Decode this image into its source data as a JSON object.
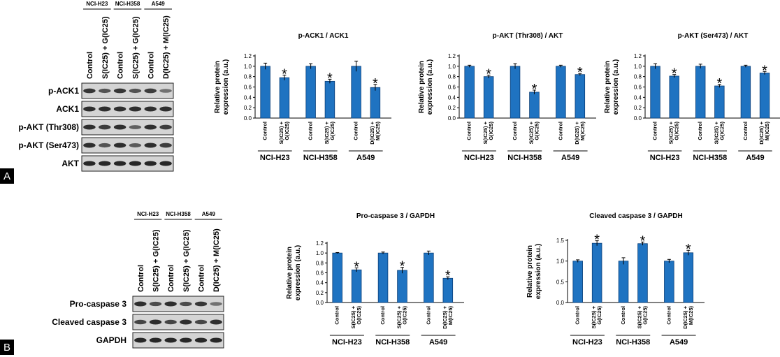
{
  "panels": [
    {
      "letter": "A",
      "blot": {
        "groups": [
          "NCI-H23",
          "NCI-H358",
          "A549"
        ],
        "lanes": [
          "Control",
          "S(IC25) + G(IC25)",
          "Control",
          "S(IC25) + G(IC25)",
          "Control",
          "D(IC25) + M(IC25)"
        ],
        "rows": [
          {
            "label": "p-ACK1",
            "intensity": [
              0.75,
              0.55,
              0.75,
              0.55,
              0.7,
              0.35
            ]
          },
          {
            "label": "ACK1",
            "intensity": [
              0.8,
              0.8,
              0.8,
              0.8,
              0.8,
              0.8
            ]
          },
          {
            "label": "p-AKT (Thr308)",
            "intensity": [
              0.8,
              0.7,
              0.8,
              0.45,
              0.8,
              0.7
            ]
          },
          {
            "label": "p-AKT (Ser473)",
            "intensity": [
              0.8,
              0.55,
              0.8,
              0.5,
              0.8,
              0.7
            ]
          },
          {
            "label": "AKT",
            "intensity": [
              0.85,
              0.85,
              0.85,
              0.85,
              0.85,
              0.85
            ]
          }
        ]
      }
    },
    {
      "letter": "B",
      "blot": {
        "groups": [
          "NCI-H23",
          "NCI-H358",
          "A549"
        ],
        "lanes": [
          "Control",
          "S(IC25) + G(IC25)",
          "Control",
          "S(IC25) + G(IC25)",
          "Control",
          "D(IC25) + M(IC25)"
        ],
        "rows": [
          {
            "label": "Pro-caspase 3",
            "intensity": [
              0.8,
              0.6,
              0.8,
              0.6,
              0.75,
              0.35
            ]
          },
          {
            "label": "Cleaved caspase 3",
            "intensity": [
              0.65,
              0.8,
              0.65,
              0.8,
              0.65,
              0.8
            ]
          },
          {
            "label": "GAPDH",
            "intensity": [
              0.85,
              0.85,
              0.85,
              0.85,
              0.85,
              0.85
            ]
          }
        ]
      }
    }
  ],
  "chart_data": [
    {
      "type": "bar",
      "title": "p-ACK1 / ACK1",
      "ylabel": "Relative protein expression (a.u.)",
      "ylim": [
        0,
        1.2
      ],
      "yticks": [
        0,
        0.2,
        0.4,
        0.6,
        0.8,
        1.0,
        1.2
      ],
      "groups": [
        {
          "name": "NCI-H23",
          "categories": [
            "Control",
            "S(IC25) + G(IC25)"
          ],
          "values": [
            1.0,
            0.78
          ],
          "errors": [
            0.06,
            0.05
          ],
          "significant": [
            false,
            true
          ]
        },
        {
          "name": "NCI-H358",
          "categories": [
            "Control",
            "S(IC25) + G(IC25)"
          ],
          "values": [
            1.0,
            0.71
          ],
          "errors": [
            0.05,
            0.04
          ],
          "significant": [
            false,
            true
          ]
        },
        {
          "name": "A549",
          "categories": [
            "Control",
            "D(IC25) + M(IC25)"
          ],
          "values": [
            1.0,
            0.59
          ],
          "errors": [
            0.1,
            0.06
          ],
          "significant": [
            false,
            true
          ]
        }
      ]
    },
    {
      "type": "bar",
      "title": "p-AKT (Thr308) / AKT",
      "ylabel": "Relative protein expression (a.u.)",
      "ylim": [
        0,
        1.2
      ],
      "yticks": [
        0,
        0.2,
        0.4,
        0.6,
        0.8,
        1.0,
        1.2
      ],
      "groups": [
        {
          "name": "NCI-H23",
          "categories": [
            "Control",
            "S(IC25) + G(IC25)"
          ],
          "values": [
            1.0,
            0.8
          ],
          "errors": [
            0.02,
            0.03
          ],
          "significant": [
            false,
            true
          ]
        },
        {
          "name": "NCI-H358",
          "categories": [
            "Control",
            "S(IC25) + G(IC25)"
          ],
          "values": [
            1.0,
            0.5
          ],
          "errors": [
            0.05,
            0.04
          ],
          "significant": [
            false,
            true
          ]
        },
        {
          "name": "A549",
          "categories": [
            "Control",
            "D(IC25) + M(IC25)"
          ],
          "values": [
            1.0,
            0.84
          ],
          "errors": [
            0.02,
            0.02
          ],
          "significant": [
            false,
            true
          ]
        }
      ]
    },
    {
      "type": "bar",
      "title": "p-AKT (Ser473) / AKT",
      "ylabel": "Relative protein expression (a.u.)",
      "ylim": [
        0,
        1.2
      ],
      "yticks": [
        0,
        0.2,
        0.4,
        0.6,
        0.8,
        1.0,
        1.2
      ],
      "groups": [
        {
          "name": "NCI-H23",
          "categories": [
            "Control",
            "S(IC25) + G(IC25)"
          ],
          "values": [
            1.0,
            0.81
          ],
          "errors": [
            0.05,
            0.03
          ],
          "significant": [
            false,
            true
          ]
        },
        {
          "name": "NCI-H358",
          "categories": [
            "Control",
            "S(IC25) + G(IC25)"
          ],
          "values": [
            1.0,
            0.62
          ],
          "errors": [
            0.04,
            0.03
          ],
          "significant": [
            false,
            true
          ]
        },
        {
          "name": "A549",
          "categories": [
            "Control",
            "D(IC25) + M(IC25)"
          ],
          "values": [
            1.0,
            0.87
          ],
          "errors": [
            0.02,
            0.03
          ],
          "significant": [
            false,
            true
          ]
        }
      ]
    },
    {
      "type": "bar",
      "title": "Pro-caspase 3 / GAPDH",
      "ylabel": "Relative protein expression (a.u.)",
      "ylim": [
        0,
        1.2
      ],
      "yticks": [
        0,
        0.2,
        0.4,
        0.6,
        0.8,
        1.0,
        1.2
      ],
      "groups": [
        {
          "name": "NCI-H23",
          "categories": [
            "Control",
            "S(IC25) + G(IC25)"
          ],
          "values": [
            1.0,
            0.66
          ],
          "errors": [
            0.01,
            0.04
          ],
          "significant": [
            false,
            true
          ]
        },
        {
          "name": "NCI-H358",
          "categories": [
            "Control",
            "S(IC25) + G(IC25)"
          ],
          "values": [
            1.0,
            0.65
          ],
          "errors": [
            0.02,
            0.06
          ],
          "significant": [
            false,
            true
          ]
        },
        {
          "name": "A549",
          "categories": [
            "Control",
            "D(IC25) + M(IC25)"
          ],
          "values": [
            1.0,
            0.49
          ],
          "errors": [
            0.04,
            0.03
          ],
          "significant": [
            false,
            true
          ]
        }
      ]
    },
    {
      "type": "bar",
      "title": "Cleaved caspase 3 / GAPDH",
      "ylabel": "Relative protein expression (a.u.)",
      "ylim": [
        0,
        1.5
      ],
      "yticks": [
        0,
        0.5,
        1.0,
        1.5
      ],
      "groups": [
        {
          "name": "NCI-H23",
          "categories": [
            "Control",
            "S(IC25) + G(IC25)"
          ],
          "values": [
            1.0,
            1.43
          ],
          "errors": [
            0.03,
            0.06
          ],
          "significant": [
            false,
            true
          ]
        },
        {
          "name": "NCI-H358",
          "categories": [
            "Control",
            "S(IC25) + G(IC25)"
          ],
          "values": [
            1.0,
            1.42
          ],
          "errors": [
            0.08,
            0.04
          ],
          "significant": [
            false,
            true
          ]
        },
        {
          "name": "A549",
          "categories": [
            "Control",
            "D(IC25) + M(IC25)"
          ],
          "values": [
            1.0,
            1.2
          ],
          "errors": [
            0.04,
            0.06
          ],
          "significant": [
            false,
            true
          ]
        }
      ]
    }
  ],
  "colors": {
    "bar": "#1f73c1",
    "bar_edge": "#0b3f78",
    "blot_bg": "#d4d4d4",
    "band": "#111111"
  }
}
